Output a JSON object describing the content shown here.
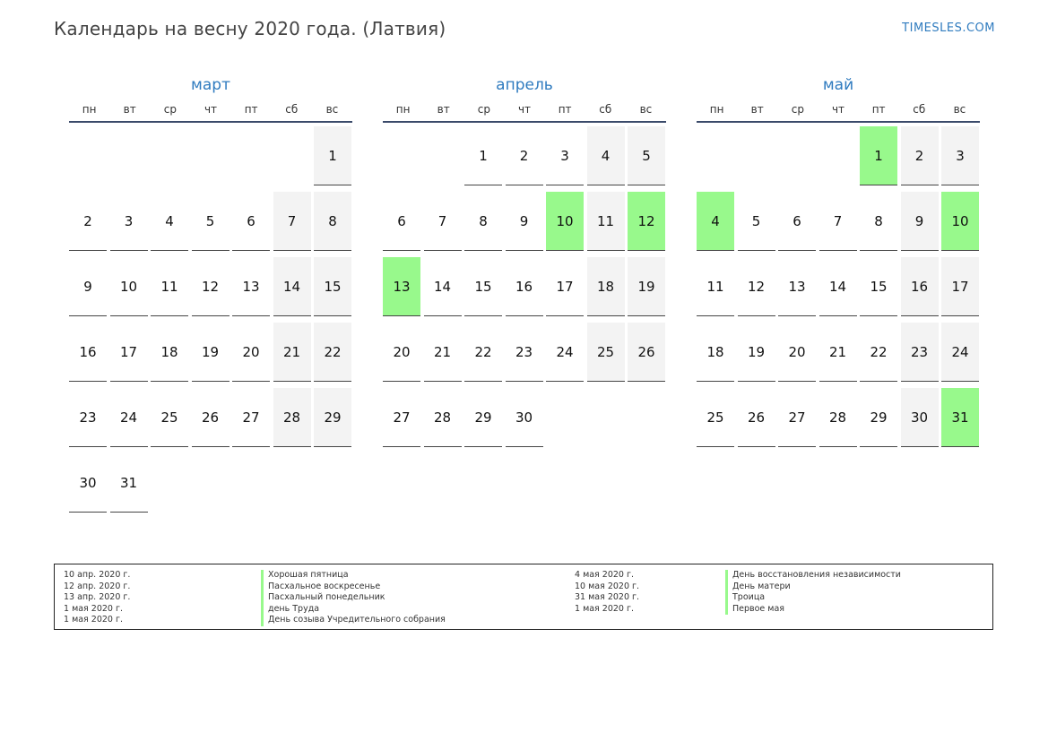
{
  "header": {
    "title": "Календарь на весну 2020 года. (Латвия)",
    "brand": "TIMESLES.COM"
  },
  "weekday_labels": [
    "пн",
    "вт",
    "ср",
    "чт",
    "пт",
    "сб",
    "вс"
  ],
  "months": [
    {
      "name": "март",
      "start_weekday": 6,
      "days": 31,
      "holidays": []
    },
    {
      "name": "апрель",
      "start_weekday": 2,
      "days": 30,
      "holidays": [
        10,
        12,
        13
      ]
    },
    {
      "name": "май",
      "start_weekday": 4,
      "days": 31,
      "holidays": [
        1,
        4,
        10,
        31
      ]
    }
  ],
  "legend": {
    "left": [
      {
        "date": "10 апр. 2020 г.",
        "name": "Хорошая пятница"
      },
      {
        "date": "12 апр. 2020 г.",
        "name": "Пасхальное воскресенье"
      },
      {
        "date": "13 апр. 2020 г.",
        "name": "Пасхальный понедельник"
      },
      {
        "date": "1 мая 2020 г.",
        "name": "день Труда"
      },
      {
        "date": "1 мая 2020 г.",
        "name": "День созыва Учредительного собрания"
      }
    ],
    "right": [
      {
        "date": "4 мая 2020 г.",
        "name": "День восстановления независимости"
      },
      {
        "date": "10 мая 2020 г.",
        "name": "День матери"
      },
      {
        "date": "31 мая 2020 г.",
        "name": "Троица"
      },
      {
        "date": "1 мая 2020 г.",
        "name": "Первое мая"
      }
    ]
  },
  "colors": {
    "accent": "#2f7bbf",
    "holiday": "#98f98c",
    "weekend": "#f3f3f3"
  }
}
